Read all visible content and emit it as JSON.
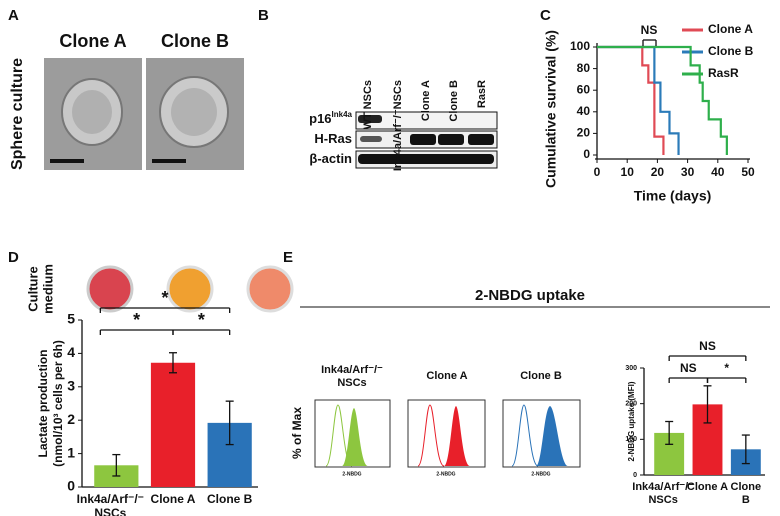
{
  "panels": {
    "A": {
      "letter": "A",
      "labels": [
        "Clone A",
        "Clone B"
      ],
      "row_label": "Sphere culture"
    },
    "B": {
      "letter": "B",
      "lanes": [
        "WT NSCs",
        "Ink4a/Arf⁻/⁻NSCs",
        "Clone A",
        "Clone B",
        "RasR"
      ],
      "rows": [
        {
          "text": "p16",
          "sup": "Ink4a"
        },
        {
          "text": "H-Ras"
        },
        {
          "text": "β-actin"
        }
      ]
    },
    "C": {
      "letter": "C"
    },
    "D": {
      "letter": "D",
      "image_label": [
        "Culture",
        "medium"
      ]
    },
    "E": {
      "letter": "E",
      "title": "2-NBDG uptake",
      "flow_labels": [
        "Ink4a/Arf⁻/⁻\nNSCs",
        "Clone A",
        "Clone B"
      ],
      "flow_y_label": "% of Max",
      "flow_x_label": "2-NBDG"
    }
  },
  "chart_data": [
    {
      "type": "line",
      "x_label": "Time (days)",
      "y_label": "Cumulative survival (%)",
      "annotations": [
        "NS"
      ],
      "xlim": [
        0,
        50
      ],
      "xticks": [
        0,
        10,
        20,
        30,
        40,
        50
      ],
      "ylim": [
        0,
        100
      ],
      "yticks": [
        0,
        20,
        40,
        60,
        80,
        100
      ],
      "series": [
        {
          "name": "Clone A",
          "color": "#e04a55",
          "x": [
            0,
            15,
            15,
            17,
            17,
            19,
            19,
            22,
            22
          ],
          "values": [
            100,
            100,
            83,
            83,
            67,
            67,
            17,
            17,
            0
          ]
        },
        {
          "name": "Clone B",
          "color": "#2b7bb9",
          "x": [
            0,
            19,
            19,
            21,
            21,
            24,
            24,
            27,
            27
          ],
          "values": [
            100,
            100,
            67,
            67,
            40,
            40,
            20,
            20,
            0
          ]
        },
        {
          "name": "RasR",
          "color": "#2eaf4b",
          "x": [
            0,
            31,
            31,
            34,
            34,
            35,
            35,
            37,
            37,
            41,
            41,
            43,
            43
          ],
          "values": [
            100,
            100,
            83,
            83,
            67,
            67,
            50,
            50,
            33,
            33,
            17,
            17,
            0
          ]
        }
      ]
    },
    {
      "type": "bar",
      "y_label": [
        "Lactate production",
        "(nmol/10³ cells per 6h)"
      ],
      "annotations": [
        "*",
        "*",
        "*"
      ],
      "categories": [
        "Ink4a/Arf⁻/⁻\nNSCs",
        "Clone A",
        "Clone B"
      ],
      "values": [
        0.65,
        3.72,
        1.92
      ],
      "errors": [
        0.32,
        0.3,
        0.65
      ],
      "colors": [
        "#8dc63f",
        "#e8202a",
        "#2a73b8"
      ],
      "ylim": [
        0,
        5
      ],
      "yticks": [
        0,
        1,
        2,
        3,
        4,
        5
      ]
    },
    {
      "type": "bar",
      "y_label": [
        "2-NBDG uptake (MFI)"
      ],
      "annotations": [
        "NS",
        "NS",
        "*"
      ],
      "categories": [
        "Ink4a/Arf⁻/⁻\nNSCs",
        "Clone A",
        "Clone B"
      ],
      "values": [
        118,
        198,
        72
      ],
      "errors": [
        32,
        52,
        40
      ],
      "colors": [
        "#8dc63f",
        "#e8202a",
        "#2a73b8"
      ],
      "ylim": [
        0,
        300
      ],
      "yticks": [
        0,
        100,
        200,
        300
      ]
    }
  ]
}
